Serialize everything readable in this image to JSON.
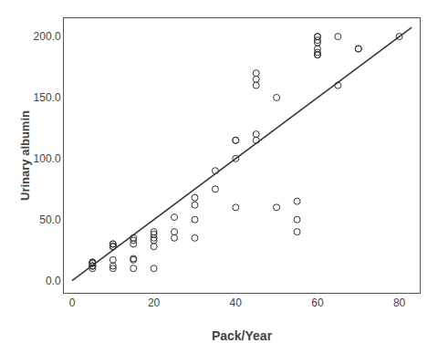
{
  "chart_data": {
    "type": "scatter",
    "xlabel": "Pack/Year",
    "ylabel": "Urinary albumin",
    "xlim": [
      -2,
      85
    ],
    "ylim": [
      -10,
      215
    ],
    "xticks": [
      0,
      20,
      40,
      60,
      80
    ],
    "yticks": [
      {
        "value": 0,
        "label": "0.0"
      },
      {
        "value": 50,
        "label": "50.0"
      },
      {
        "value": 100,
        "label": "100.0"
      },
      {
        "value": 150,
        "label": "150.0"
      },
      {
        "value": 200,
        "label": "200.0"
      }
    ],
    "grid": false,
    "series": [
      {
        "type": "scatter",
        "color": "#333333",
        "marker": "open circle",
        "x": [
          5,
          5,
          5,
          5,
          5,
          5,
          5,
          5,
          10,
          10,
          10,
          10,
          10,
          10,
          10,
          15,
          15,
          15,
          15,
          15,
          15,
          20,
          20,
          20,
          20,
          20,
          20,
          25,
          25,
          25,
          30,
          30,
          30,
          30,
          35,
          35,
          40,
          40,
          40,
          40,
          45,
          45,
          45,
          45,
          45,
          50,
          50,
          55,
          55,
          55,
          60,
          60,
          60,
          60,
          60,
          60,
          60,
          60,
          65,
          65,
          70,
          70,
          80
        ],
        "values": [
          15,
          15,
          15,
          14,
          12,
          12,
          12,
          10,
          30,
          30,
          28,
          28,
          17,
          12,
          10,
          35,
          33,
          30,
          18,
          17,
          10,
          40,
          38,
          35,
          33,
          28,
          10,
          52,
          40,
          35,
          68,
          62,
          50,
          35,
          90,
          75,
          115,
          115,
          100,
          60,
          170,
          165,
          160,
          120,
          115,
          150,
          60,
          65,
          50,
          40,
          200,
          200,
          197,
          195,
          190,
          187,
          185,
          185,
          200,
          160,
          190,
          190,
          200
        ]
      },
      {
        "type": "line",
        "color": "#333333",
        "x": [
          0,
          83
        ],
        "values": [
          0,
          207.5
        ]
      }
    ]
  }
}
